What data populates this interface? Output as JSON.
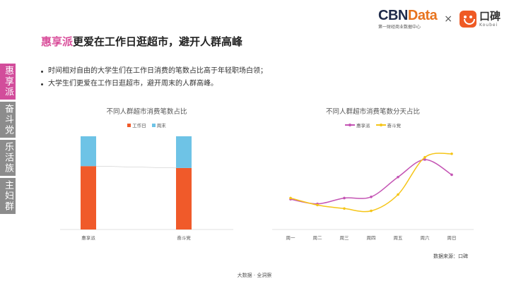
{
  "header": {
    "cbn_logo_part1": "CBN",
    "cbn_logo_part2": "Data",
    "cbn_sub": "第一财经商业数据中心",
    "times": "×",
    "koubei_cn": "口碑",
    "koubei_en": "Koubei",
    "brand_colors": {
      "cbn_navy": "#1e2a4a",
      "cbn_orange": "#e8741e",
      "koubei_orange": "#ef5a24"
    }
  },
  "title": {
    "highlight": "惠享派",
    "rest": "更爱在工作日逛超市，避开人群高峰",
    "highlight_color": "#d94d9a"
  },
  "side_tabs": [
    {
      "label": "惠享派",
      "active": true
    },
    {
      "label": "奋斗党",
      "active": false
    },
    {
      "label": "乐活族",
      "active": false
    },
    {
      "label": "主妇群",
      "active": false
    }
  ],
  "bullets": [
    "时间相对自由的大学生们在工作日消费的笔数占比高于年轻职场白领；",
    "大学生们更爱在工作日逛超市，避开周末的人群高峰。"
  ],
  "chart_data": [
    {
      "type": "bar",
      "stacked": true,
      "normalized": true,
      "title": "不同人群超市消费笔数占比",
      "categories": [
        "惠享派",
        "奋斗党"
      ],
      "series": [
        {
          "name": "工作日",
          "color": "#f05a2a",
          "values": [
            0.68,
            0.66
          ]
        },
        {
          "name": "周末",
          "color": "#6ec3e6",
          "values": [
            0.32,
            0.34
          ]
        }
      ],
      "ylim": [
        0,
        1
      ],
      "legend": "top-center",
      "grid": false
    },
    {
      "type": "line",
      "smooth": true,
      "title": "不同人群超市消费笔数分天占比",
      "categories": [
        "周一",
        "周二",
        "周三",
        "周四",
        "周五",
        "周六",
        "周日"
      ],
      "series": [
        {
          "name": "惠享派",
          "color": "#c454b4",
          "values": [
            0.146,
            0.142,
            0.147,
            0.148,
            0.165,
            0.18,
            0.167
          ]
        },
        {
          "name": "奋斗党",
          "color": "#f5c518",
          "values": [
            0.147,
            0.141,
            0.138,
            0.136,
            0.15,
            0.182,
            0.185
          ]
        }
      ],
      "ylim": [
        0.12,
        0.2
      ],
      "legend": "top-center",
      "grid": false
    }
  ],
  "source": "数据来源：口碑",
  "footer": "大数据 · 全洞察"
}
